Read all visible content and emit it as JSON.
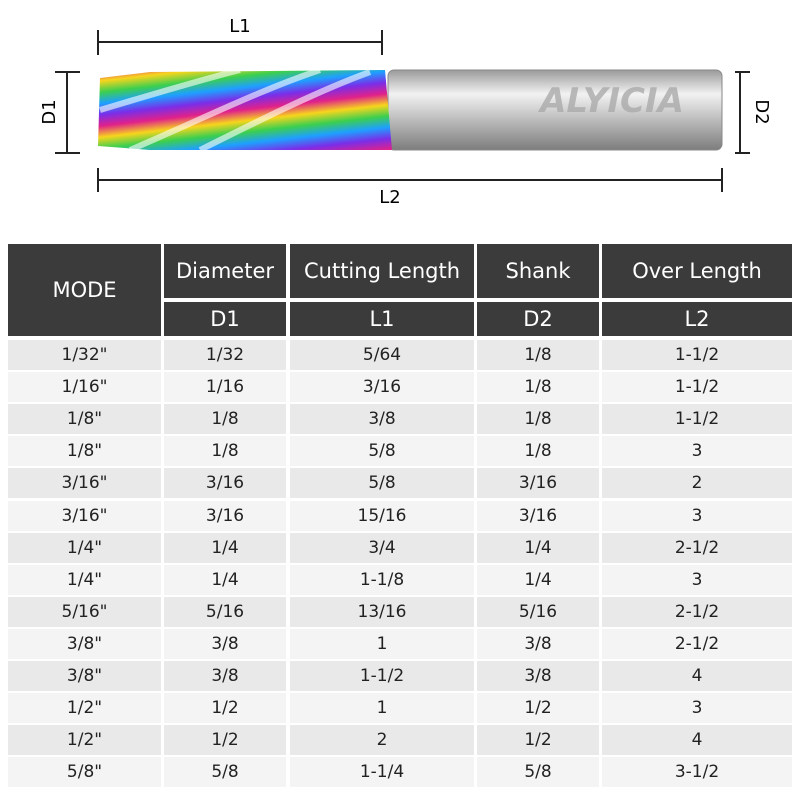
{
  "diagram": {
    "cutting_length": "L1",
    "diameter": "D1",
    "shank": "D2",
    "overall_length": "L2",
    "brand": "ALYICIA"
  },
  "table": {
    "columns": [
      {
        "title": "MODE"
      },
      {
        "title": "Diameter",
        "symbol": "D1"
      },
      {
        "title": "Cutting Length",
        "symbol": "L1"
      },
      {
        "title": "Shank",
        "symbol": "D2"
      },
      {
        "title": "Over Length",
        "symbol": "L2"
      }
    ],
    "rows": [
      [
        "1/32\"",
        "1/32",
        "5/64",
        "1/8",
        "1-1/2"
      ],
      [
        "1/16\"",
        "1/16",
        "3/16",
        "1/8",
        "1-1/2"
      ],
      [
        "1/8\"",
        "1/8",
        "3/8",
        "1/8",
        "1-1/2"
      ],
      [
        "1/8\"",
        "1/8",
        "5/8",
        "1/8",
        "3"
      ],
      [
        "3/16\"",
        "3/16",
        "5/8",
        "3/16",
        "2"
      ],
      [
        "3/16\"",
        "3/16",
        "15/16",
        "3/16",
        "3"
      ],
      [
        "1/4\"",
        "1/4",
        "3/4",
        "1/4",
        "2-1/2"
      ],
      [
        "1/4\"",
        "1/4",
        "1-1/8",
        "1/4",
        "3"
      ],
      [
        "5/16\"",
        "5/16",
        "13/16",
        "5/16",
        "2-1/2"
      ],
      [
        "3/8\"",
        "3/8",
        "1",
        "3/8",
        "2-1/2"
      ],
      [
        "3/8\"",
        "3/8",
        "1-1/2",
        "3/8",
        "4"
      ],
      [
        "1/2\"",
        "1/2",
        "1",
        "1/2",
        "3"
      ],
      [
        "1/2\"",
        "1/2",
        "2",
        "1/2",
        "4"
      ],
      [
        "5/8\"",
        "5/8",
        "1-1/4",
        "5/8",
        "3-1/2"
      ]
    ]
  }
}
